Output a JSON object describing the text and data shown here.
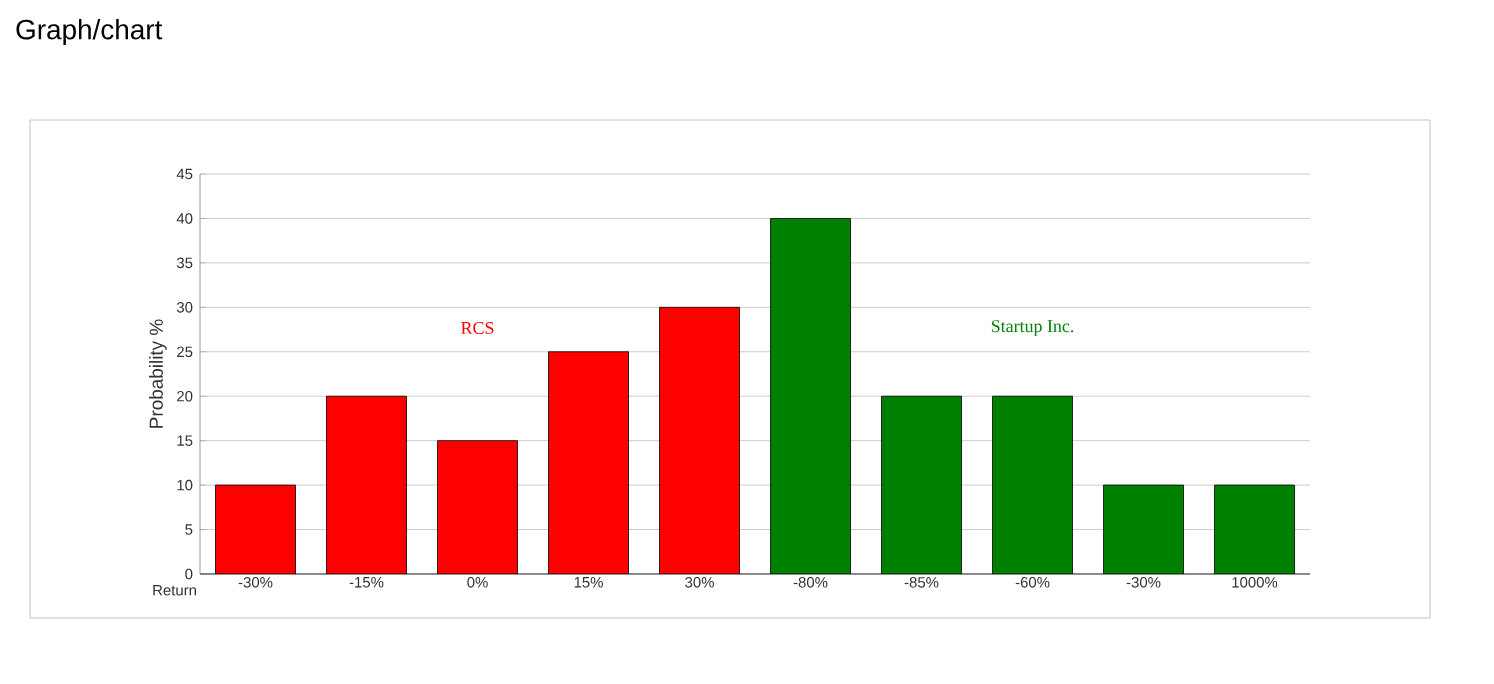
{
  "chart_data": {
    "type": "bar",
    "title": "Graph/chart",
    "xlabel": "Return",
    "ylabel": "Probability %",
    "categories": [
      "-30%",
      "-15%",
      "0%",
      "15%",
      "30%",
      "-80%",
      "-85%",
      "-60%",
      "-30%",
      "1000%"
    ],
    "series": [
      {
        "name": "RCS",
        "color": "#ff0000",
        "values": [
          10,
          20,
          15,
          25,
          30,
          null,
          null,
          null,
          null,
          null
        ]
      },
      {
        "name": "Startup Inc.",
        "color": "#008000",
        "values": [
          null,
          null,
          null,
          null,
          null,
          40,
          20,
          20,
          10,
          10
        ]
      }
    ],
    "ylim": [
      0,
      45
    ],
    "yticks": [
      0,
      5,
      10,
      15,
      20,
      25,
      30,
      35,
      40,
      45
    ],
    "grid": "y"
  }
}
